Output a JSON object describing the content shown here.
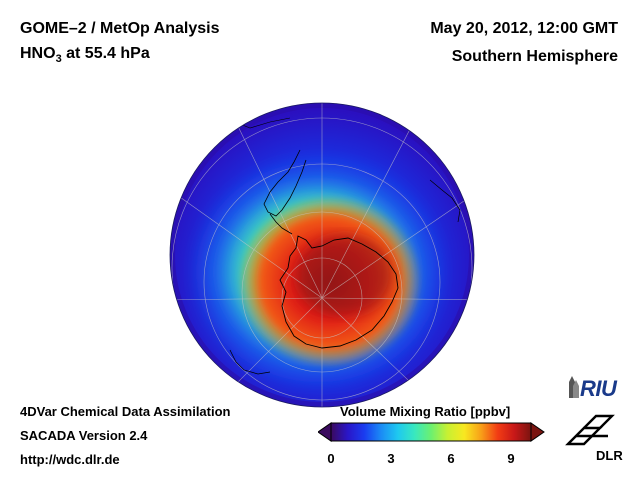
{
  "header": {
    "title_main": "GOME–2 / MetOp Analysis",
    "species_prefix": "HNO",
    "species_subscript": "3",
    "species_suffix": " at 55.4 hPa",
    "datetime": "May 20, 2012, 12:00 GMT",
    "region": "Southern Hemisphere"
  },
  "footer": {
    "line1": "4DVar Chemical Data Assimilation",
    "line2": "SACADA Version 2.4",
    "line3": "http://wdc.dlr.de"
  },
  "colorbar": {
    "title": "Volume Mixing Ratio [ppbv]",
    "ticks": [
      {
        "label": "0",
        "value": 0
      },
      {
        "label": "3",
        "value": 3
      },
      {
        "label": "6",
        "value": 6
      },
      {
        "label": "9",
        "value": 9
      }
    ],
    "min": 0,
    "max": 10,
    "stops": [
      "#3b0a5e",
      "#2a16c8",
      "#1a3cf0",
      "#1b8bf5",
      "#1ec8f0",
      "#38e8c0",
      "#6cf070",
      "#c8f032",
      "#f8e820",
      "#f8a018",
      "#f23c14",
      "#c81818",
      "#7a1410"
    ]
  },
  "logos": {
    "riu": "RIU",
    "dlr": "DLR"
  }
}
